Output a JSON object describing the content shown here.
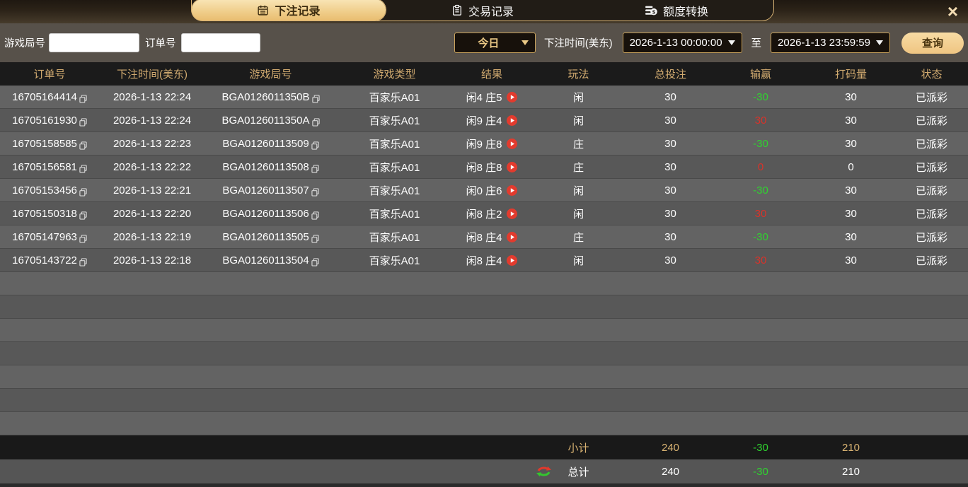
{
  "window": {
    "close_label": "×"
  },
  "tabs": [
    {
      "label": "下注记录"
    },
    {
      "label": "交易记录"
    },
    {
      "label": "额度转换"
    }
  ],
  "filters": {
    "game_round_label": "游戏局号",
    "game_round_value": "",
    "order_label": "订单号",
    "order_value": "",
    "range_value": "今日",
    "bet_time_label": "下注时间(美东)",
    "time_from": "2026-1-13 00:00:00",
    "to_label": "至",
    "time_to": "2026-1-13 23:59:59",
    "query_label": "查询"
  },
  "table": {
    "headers": [
      "订单号",
      "下注时间(美东)",
      "游戏局号",
      "游戏类型",
      "结果",
      "玩法",
      "总投注",
      "输赢",
      "打码量",
      "状态"
    ],
    "rows": [
      {
        "order": "16705164414",
        "time": "2026-1-13 22:24",
        "round": "BGA0126011350B",
        "game": "百家乐A01",
        "result": "闲4 庄5",
        "play": "闲",
        "bet": "30",
        "winloss": "-30",
        "wl_class": "green",
        "rolling": "30",
        "status": "已派彩"
      },
      {
        "order": "16705161930",
        "time": "2026-1-13 22:24",
        "round": "BGA0126011350A",
        "game": "百家乐A01",
        "result": "闲9 庄4",
        "play": "闲",
        "bet": "30",
        "winloss": "30",
        "wl_class": "red",
        "rolling": "30",
        "status": "已派彩"
      },
      {
        "order": "16705158585",
        "time": "2026-1-13 22:23",
        "round": "BGA01260113509",
        "game": "百家乐A01",
        "result": "闲9 庄8",
        "play": "庄",
        "bet": "30",
        "winloss": "-30",
        "wl_class": "green",
        "rolling": "30",
        "status": "已派彩"
      },
      {
        "order": "16705156581",
        "time": "2026-1-13 22:22",
        "round": "BGA01260113508",
        "game": "百家乐A01",
        "result": "闲8 庄8",
        "play": "庄",
        "bet": "30",
        "winloss": "0",
        "wl_class": "red",
        "rolling": "0",
        "status": "已派彩"
      },
      {
        "order": "16705153456",
        "time": "2026-1-13 22:21",
        "round": "BGA01260113507",
        "game": "百家乐A01",
        "result": "闲0 庄6",
        "play": "闲",
        "bet": "30",
        "winloss": "-30",
        "wl_class": "green",
        "rolling": "30",
        "status": "已派彩"
      },
      {
        "order": "16705150318",
        "time": "2026-1-13 22:20",
        "round": "BGA01260113506",
        "game": "百家乐A01",
        "result": "闲8 庄2",
        "play": "闲",
        "bet": "30",
        "winloss": "30",
        "wl_class": "red",
        "rolling": "30",
        "status": "已派彩"
      },
      {
        "order": "16705147963",
        "time": "2026-1-13 22:19",
        "round": "BGA01260113505",
        "game": "百家乐A01",
        "result": "闲8 庄4",
        "play": "庄",
        "bet": "30",
        "winloss": "-30",
        "wl_class": "green",
        "rolling": "30",
        "status": "已派彩"
      },
      {
        "order": "16705143722",
        "time": "2026-1-13 22:18",
        "round": "BGA01260113504",
        "game": "百家乐A01",
        "result": "闲8 庄4",
        "play": "闲",
        "bet": "30",
        "winloss": "30",
        "wl_class": "red",
        "rolling": "30",
        "status": "已派彩"
      }
    ],
    "subtotal": {
      "label": "小计",
      "bet": "240",
      "winloss": "-30",
      "wl_class": "green",
      "rolling": "210"
    },
    "total": {
      "label": "总计",
      "bet": "240",
      "winloss": "-30",
      "wl_class": "green",
      "rolling": "210"
    }
  },
  "colors": {
    "accent_gold": "#ecca86",
    "header_text_gold": "#d2ab70",
    "active_tab_gradient_start": "#f9e5b6",
    "active_tab_gradient_end": "#e9bd70",
    "win_red": "#d8332a",
    "loss_green": "#2fd32f",
    "row_light": "#636363",
    "row_dark": "#585858"
  }
}
